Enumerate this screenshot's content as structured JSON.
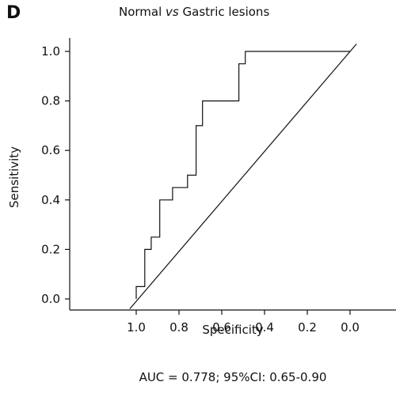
{
  "panel_label": "D",
  "title": {
    "before": "Normal ",
    "italic": "vs",
    "after": " Gastric lesions"
  },
  "footer": "AUC = 0.778; 95%CI: 0.65-0.90",
  "chart_data": {
    "type": "line",
    "xlabel": "Specificity",
    "ylabel": "Sensitivity",
    "xlim": [
      1.0,
      0.0
    ],
    "ylim": [
      0.0,
      1.0
    ],
    "x_reversed": true,
    "x_ticks": [
      "1.0",
      "0.8",
      "0.6",
      "0.4",
      "0.2",
      "0.0"
    ],
    "y_ticks": [
      "0.0",
      "0.2",
      "0.4",
      "0.6",
      "0.8",
      "1.0"
    ],
    "grid": false,
    "series": [
      {
        "points": [
          {
            "specificity": 1.0,
            "sensitivity": 0.0
          },
          {
            "specificity": 1.0,
            "sensitivity": 0.05
          },
          {
            "specificity": 0.96,
            "sensitivity": 0.05
          },
          {
            "specificity": 0.96,
            "sensitivity": 0.2
          },
          {
            "specificity": 0.93,
            "sensitivity": 0.2
          },
          {
            "specificity": 0.93,
            "sensitivity": 0.25
          },
          {
            "specificity": 0.89,
            "sensitivity": 0.25
          },
          {
            "specificity": 0.89,
            "sensitivity": 0.4
          },
          {
            "specificity": 0.83,
            "sensitivity": 0.4
          },
          {
            "specificity": 0.83,
            "sensitivity": 0.45
          },
          {
            "specificity": 0.76,
            "sensitivity": 0.45
          },
          {
            "specificity": 0.76,
            "sensitivity": 0.5
          },
          {
            "specificity": 0.72,
            "sensitivity": 0.5
          },
          {
            "specificity": 0.72,
            "sensitivity": 0.7
          },
          {
            "specificity": 0.69,
            "sensitivity": 0.7
          },
          {
            "specificity": 0.69,
            "sensitivity": 0.8
          },
          {
            "specificity": 0.52,
            "sensitivity": 0.8
          },
          {
            "specificity": 0.52,
            "sensitivity": 0.95
          },
          {
            "specificity": 0.49,
            "sensitivity": 0.95
          },
          {
            "specificity": 0.49,
            "sensitivity": 1.0
          },
          {
            "specificity": 0.0,
            "sensitivity": 1.0
          }
        ]
      },
      {
        "points": [
          {
            "specificity": 1.03,
            "sensitivity": -0.04
          },
          {
            "specificity": -0.03,
            "sensitivity": 1.03
          }
        ]
      }
    ]
  }
}
